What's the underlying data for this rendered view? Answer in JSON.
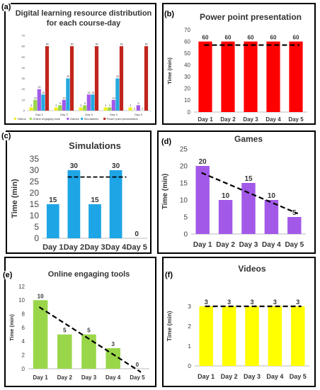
{
  "figure": {
    "panels": [
      {
        "id": "a",
        "label": "(a)"
      },
      {
        "id": "b",
        "label": "(b)"
      },
      {
        "id": "c",
        "label": "(c)"
      },
      {
        "id": "d",
        "label": "(d)"
      },
      {
        "id": "e",
        "label": "(e)"
      },
      {
        "id": "f",
        "label": "(f)"
      }
    ]
  },
  "chart_data": [
    {
      "panel": "a",
      "type": "bar",
      "title": "Digital learning resource distribution for each course-day",
      "categories": [
        "Day 1",
        "Day 2",
        "Day 3",
        "Day 4",
        "Day 5"
      ],
      "ylim": [
        0,
        70
      ],
      "yticks": [
        0,
        10,
        20,
        30,
        40,
        50,
        60,
        70
      ],
      "legend_position": "bottom",
      "series": [
        {
          "name": "Videos",
          "color": "#eeee22",
          "values": [
            3,
            3,
            3,
            3,
            3
          ]
        },
        {
          "name": "Online engaging tools",
          "color": "#99d64a",
          "values": [
            10,
            5,
            5,
            3,
            0
          ]
        },
        {
          "name": "Games",
          "color": "#a259e8",
          "values": [
            20,
            10,
            15,
            10,
            5
          ]
        },
        {
          "name": "Simulations",
          "color": "#23a8e0",
          "values": [
            15,
            30,
            15,
            30,
            0
          ]
        },
        {
          "name": "Power point presentation",
          "color": "#c0241c",
          "values": [
            60,
            60,
            60,
            60,
            60
          ]
        }
      ]
    },
    {
      "panel": "b",
      "type": "bar",
      "title": "Power point presentation",
      "ylabel": "Time (min)",
      "categories": [
        "Day 1",
        "Day 2",
        "Day 3",
        "Day 4",
        "Day 5"
      ],
      "values": [
        60,
        60,
        60,
        60,
        60
      ],
      "ylim": [
        0,
        70
      ],
      "yticks": [
        0,
        10,
        20,
        30,
        40,
        50,
        60,
        70
      ],
      "color": "#ff0000",
      "trend": [
        57,
        57
      ]
    },
    {
      "panel": "c",
      "type": "bar",
      "title": "Simulations",
      "ylabel": "Time (min)",
      "categories": [
        "Day 1",
        "Day 2",
        "Day 3",
        "Day 4",
        "Day 5"
      ],
      "values": [
        15,
        30,
        15,
        30,
        0
      ],
      "ylim": [
        0,
        35
      ],
      "yticks": [
        0,
        5,
        10,
        15,
        20,
        25,
        30,
        35
      ],
      "color": "#1ea5e6",
      "trend_segment": {
        "from": "Day 2",
        "to": "Day 4",
        "value": 27
      }
    },
    {
      "panel": "d",
      "type": "bar",
      "title": "Games",
      "ylabel": "Time (min)",
      "categories": [
        "Day 1",
        "Day 2",
        "Day 3",
        "Day 4",
        "Day 5"
      ],
      "values": [
        20,
        10,
        15,
        10,
        5
      ],
      "ylim": [
        0,
        25
      ],
      "yticks": [
        0,
        5,
        10,
        15,
        20,
        25
      ],
      "color": "#a259e8",
      "trend": [
        18,
        6
      ]
    },
    {
      "panel": "e",
      "type": "bar",
      "title": "Online engaging tools",
      "ylabel": "Time (min)",
      "categories": [
        "Day 1",
        "Day 2",
        "Day 3",
        "Day 4",
        "Day 5"
      ],
      "values": [
        10,
        5,
        5,
        3,
        0
      ],
      "ylim": [
        0,
        12
      ],
      "yticks": [
        0,
        2,
        4,
        6,
        8,
        10,
        12
      ],
      "color": "#99d64a",
      "trend": [
        9,
        -0.5
      ]
    },
    {
      "panel": "f",
      "type": "bar",
      "title": "Videos",
      "ylabel": "Time (min)",
      "categories": [
        "Day 1",
        "Day 2",
        "Day 3",
        "Day 4",
        "Day 5"
      ],
      "values": [
        3,
        3,
        3,
        3,
        3
      ],
      "ylim": [
        0,
        4
      ],
      "yticks": [
        0,
        1,
        2,
        3
      ],
      "color": "#ffff00",
      "trend": [
        3,
        3
      ]
    }
  ]
}
